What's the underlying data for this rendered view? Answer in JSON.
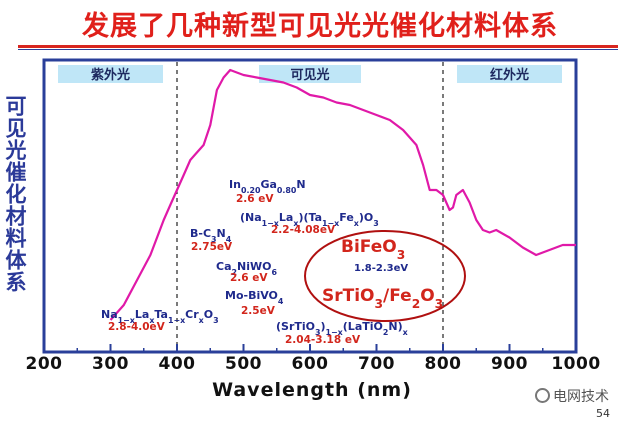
{
  "slide": {
    "title": "发展了几种新型可见光光催化材料体系",
    "page_number": "54",
    "watermark": "电网技术"
  },
  "colors": {
    "title": "#e0201b",
    "axis_label": "#2b3a99",
    "curve": "#e019a8",
    "band_fill": "#bfe6f7",
    "material_label": "#1f2a8c",
    "material_value": "#d2261c",
    "ellipse": "#b01010",
    "frame": "#2a3f9a"
  },
  "chart_data": {
    "type": "line",
    "title": "",
    "xlabel": "Wavelength (nm)",
    "ylabel": "可见光催化材料体系",
    "xlim": [
      200,
      1000
    ],
    "ylim": [
      0,
      1
    ],
    "xticks": [
      200,
      300,
      400,
      500,
      600,
      700,
      800,
      900,
      1000
    ],
    "grid": false,
    "regions": [
      {
        "label": "紫外光",
        "from": 200,
        "to": 400
      },
      {
        "label": "可见光",
        "from": 400,
        "to": 800
      },
      {
        "label": "红外光",
        "from": 800,
        "to": 1000
      }
    ],
    "dividers": [
      400,
      800
    ],
    "series": [
      {
        "x": [
          300,
          320,
          340,
          360,
          380,
          390,
          400,
          410,
          420,
          430,
          440,
          450,
          460,
          470,
          480,
          490,
          500,
          520,
          540,
          560,
          580,
          600,
          620,
          640,
          660,
          680,
          700,
          720,
          740,
          760,
          770,
          780,
          790,
          800,
          805,
          810,
          815,
          820,
          830,
          840,
          850,
          860,
          870,
          880,
          900,
          920,
          940,
          960,
          980,
          1000
        ],
        "y": [
          0.0,
          0.06,
          0.16,
          0.26,
          0.4,
          0.46,
          0.52,
          0.58,
          0.64,
          0.67,
          0.7,
          0.78,
          0.92,
          0.97,
          1.0,
          0.99,
          0.98,
          0.97,
          0.96,
          0.95,
          0.93,
          0.9,
          0.89,
          0.87,
          0.86,
          0.84,
          0.82,
          0.8,
          0.76,
          0.7,
          0.62,
          0.52,
          0.52,
          0.5,
          0.47,
          0.44,
          0.45,
          0.5,
          0.52,
          0.47,
          0.4,
          0.36,
          0.35,
          0.36,
          0.33,
          0.29,
          0.26,
          0.28,
          0.3,
          0.3
        ]
      }
    ],
    "annotations": [
      {
        "formula": "In0.20Ga0.80N",
        "value": "2.6 eV"
      },
      {
        "formula": "(Na1−xLax)(Ta1−xFex)O3",
        "value": "2.2-4.08eV"
      },
      {
        "formula": "B-C3N4",
        "value": "2.75eV"
      },
      {
        "formula": "Ca2NiWO6",
        "value": "2.6 eV"
      },
      {
        "formula": "Mo-BiVO4",
        "value": "2.5eV"
      },
      {
        "formula": "Na1−xLaxTa1−xCrxO3",
        "value": "2.8-4.0eV"
      },
      {
        "formula": "(SrTiO3)1−x(LaTiO2N)x",
        "value": "2.04-3.18 eV"
      },
      {
        "formula": "BiFeO3",
        "value": "1.8-2.3eV"
      },
      {
        "formula": "SrTiO3/Fe2O3",
        "value": ""
      }
    ]
  }
}
